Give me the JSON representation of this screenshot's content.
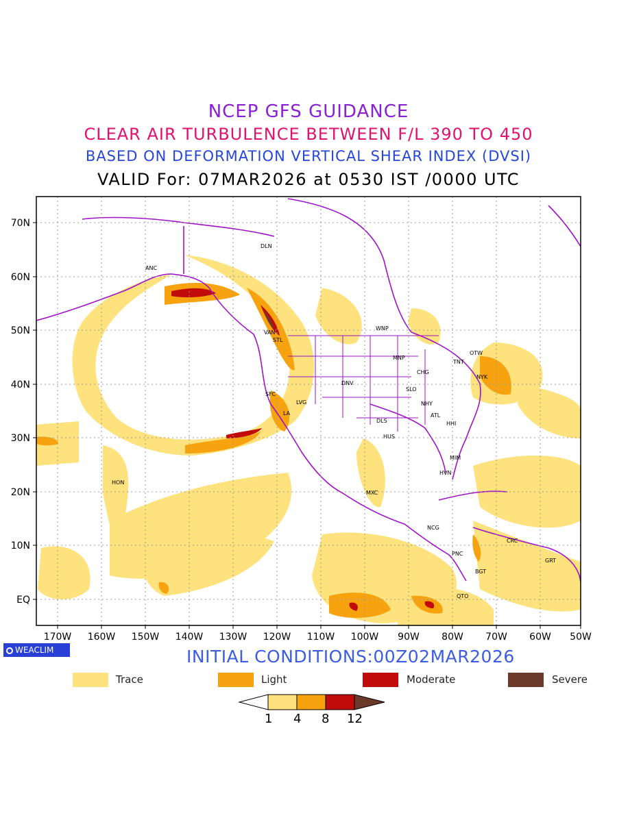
{
  "titles": {
    "line1": "NCEP GFS GUIDANCE",
    "line2": "CLEAR AIR TURBULENCE BETWEEN F/L 390 TO 450",
    "line3": "BASED ON DEFORMATION VERTICAL SHEAR INDEX (DVSI)",
    "line4": "VALID For: 07MAR2026 at 0530 IST /0000 UTC"
  },
  "colors": {
    "line1": "#8a1fd6",
    "line2": "#e0126f",
    "line3": "#2646d8",
    "line4": "#000000",
    "trace": "#fde27d",
    "light": "#f7a20f",
    "moderate": "#c10a0a",
    "severe": "#6b3a2a",
    "coast": "#a012c8"
  },
  "map": {
    "lat_labels": [
      "70N",
      "60N",
      "50N",
      "40N",
      "30N",
      "20N",
      "10N",
      "EQ"
    ],
    "lon_labels": [
      "170W",
      "160W",
      "150W",
      "140W",
      "130W",
      "120W",
      "110W",
      "100W",
      "90W",
      "80W",
      "70W",
      "60W",
      "50W"
    ],
    "cities": [
      {
        "code": "ANC"
      },
      {
        "code": "DLN"
      },
      {
        "code": "VAN"
      },
      {
        "code": "STL"
      },
      {
        "code": "WNP"
      },
      {
        "code": "MNP"
      },
      {
        "code": "TNT"
      },
      {
        "code": "OTW"
      },
      {
        "code": "CHG"
      },
      {
        "code": "NYK"
      },
      {
        "code": "DNV"
      },
      {
        "code": "SFC"
      },
      {
        "code": "LVG"
      },
      {
        "code": "SLO"
      },
      {
        "code": "LA"
      },
      {
        "code": "NHY"
      },
      {
        "code": "ATL"
      },
      {
        "code": "DLS"
      },
      {
        "code": "HHI"
      },
      {
        "code": "HUS"
      },
      {
        "code": "MIM"
      },
      {
        "code": "HON"
      },
      {
        "code": "HVN"
      },
      {
        "code": "MXC"
      },
      {
        "code": "NCG"
      },
      {
        "code": "CRC"
      },
      {
        "code": "PNC"
      },
      {
        "code": "BGT"
      },
      {
        "code": "GRT"
      },
      {
        "code": "QTO"
      }
    ]
  },
  "badge": "WEACLIM",
  "initial_conditions": "INITIAL CONDITIONS:00Z02MAR2026",
  "legend": [
    {
      "label": "Trace",
      "color": "#fde27d"
    },
    {
      "label": "Light",
      "color": "#f7a20f"
    },
    {
      "label": "Moderate",
      "color": "#c10a0a"
    },
    {
      "label": "Severe",
      "color": "#6b3a2a"
    }
  ],
  "colorbar": {
    "ticks": [
      "1",
      "4",
      "8",
      "12"
    ]
  }
}
